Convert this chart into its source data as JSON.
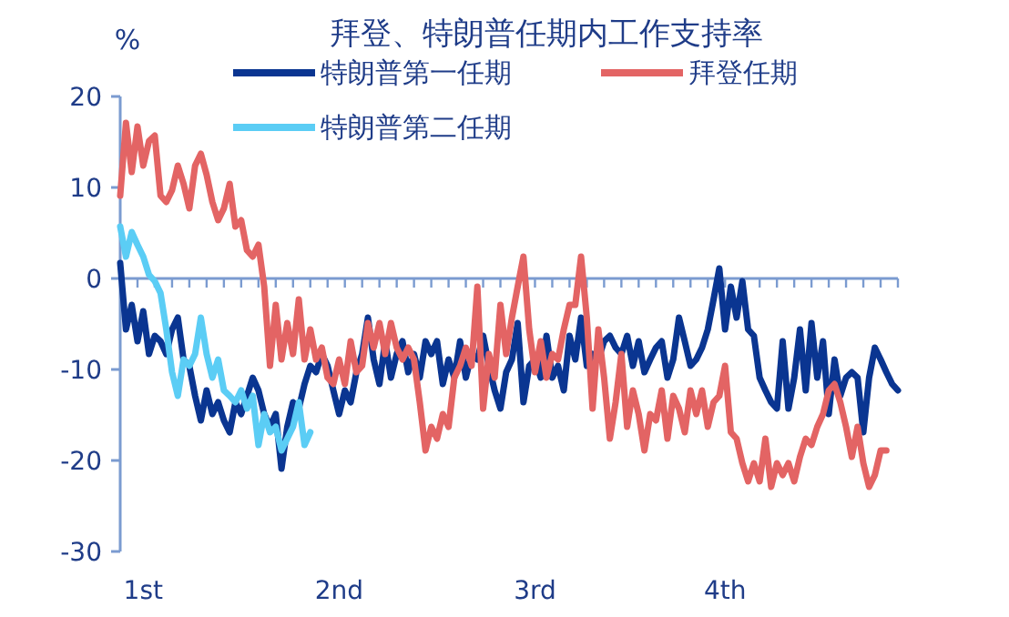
{
  "chart_data": {
    "type": "line",
    "title": "拜登、特朗普任期内工作支持率",
    "ylabel": "%",
    "ylim": [
      -30,
      20
    ],
    "yticks": [
      -30,
      -20,
      -10,
      0,
      10,
      20
    ],
    "categories": [
      null,
      null,
      null,
      null,
      "1st",
      null,
      null,
      null,
      null,
      null,
      null,
      null,
      null,
      null,
      null,
      null,
      null,
      null,
      null,
      null,
      null,
      null,
      null,
      null,
      null,
      null,
      null,
      null,
      null,
      null,
      null,
      null,
      null,
      null,
      null,
      null,
      null,
      null,
      "2nd",
      null,
      null,
      null,
      null,
      null,
      null,
      null,
      null,
      null,
      null,
      null,
      null,
      null,
      null,
      null,
      null,
      null,
      null,
      null,
      null,
      null,
      null,
      null,
      null,
      null,
      null,
      null,
      null,
      null,
      null,
      null,
      null,
      null,
      "3rd",
      null,
      null,
      null,
      null,
      null,
      null,
      null,
      null,
      null,
      null,
      null,
      null,
      null,
      null,
      null,
      null,
      null,
      null,
      null,
      null,
      null,
      null,
      null,
      null,
      null,
      null,
      null,
      null,
      null,
      null,
      null,
      null,
      "4th",
      null,
      null,
      null,
      null,
      null,
      null,
      null,
      null,
      null,
      null,
      null,
      null,
      null,
      null,
      null,
      null,
      null,
      null,
      null,
      null,
      null,
      null,
      null,
      null,
      null,
      null,
      null,
      null,
      null,
      null
    ],
    "ref_lines": [
      {
        "axis": "y",
        "value": 0,
        "color": "#7b9bd0",
        "line_style": "solid"
      }
    ],
    "legend": "top",
    "grid": false,
    "line_style": "solid",
    "series": [
      {
        "name": "特朗普第一任期",
        "color": "#0a3591",
        "values": [
          1.7,
          -5.6,
          -2.9,
          -6.9,
          -3.6,
          -8.3,
          -6.3,
          -6.9,
          -8.3,
          -5.6,
          -4.3,
          -8.9,
          -9.6,
          -12.9,
          -15.6,
          -12.3,
          -14.9,
          -13.6,
          -15.6,
          -16.9,
          -13.6,
          -14.9,
          -12.9,
          -10.9,
          -12.3,
          -14.9,
          -16.3,
          -14.9,
          -20.9,
          -16.3,
          -13.6,
          -14.3,
          -11.6,
          -9.6,
          -10.3,
          -8.3,
          -9.6,
          -12.3,
          -14.9,
          -12.3,
          -13.6,
          -10.3,
          -8.3,
          -4.3,
          -8.9,
          -11.6,
          -6.9,
          -10.9,
          -8.3,
          -6.9,
          -10.3,
          -8.3,
          -10.9,
          -6.9,
          -8.3,
          -6.9,
          -11.6,
          -8.9,
          -10.9,
          -6.9,
          -10.9,
          -8.3,
          -8.9,
          -6.3,
          -9.6,
          -12.3,
          -14.3,
          -10.3,
          -8.9,
          -4.9,
          -13.6,
          -9.6,
          -8.9,
          -10.9,
          -6.3,
          -10.9,
          -9.6,
          -12.3,
          -6.3,
          -8.9,
          -4.3,
          -9.6,
          -8.3,
          -8.9,
          -6.9,
          -6.3,
          -7.6,
          -8.3,
          -6.3,
          -9.6,
          -6.9,
          -10.3,
          -8.9,
          -7.6,
          -6.9,
          -10.9,
          -8.9,
          -4.3,
          -6.9,
          -9.6,
          -8.9,
          -7.6,
          -5.6,
          -2.3,
          1.1,
          -5.6,
          -0.9,
          -4.3,
          -0.3,
          -5.6,
          -6.3,
          -10.9,
          -12.3,
          -13.6,
          -14.3,
          -6.9,
          -14.3,
          -10.9,
          -5.6,
          -12.3,
          -4.9,
          -10.9,
          -6.9,
          -14.9,
          -8.9,
          -12.9,
          -10.9,
          -10.3,
          -10.9,
          -16.9,
          -10.9,
          -7.6,
          -8.9,
          -10.3,
          -11.6,
          -12.3
        ]
      },
      {
        "name": "拜登任期",
        "color": "#e36464",
        "values": [
          9.1,
          17.1,
          11.7,
          16.7,
          12.4,
          15.1,
          15.7,
          9.1,
          8.4,
          9.7,
          12.4,
          10.4,
          7.7,
          12.4,
          13.7,
          11.4,
          8.4,
          6.4,
          7.7,
          10.4,
          5.7,
          6.4,
          3.1,
          2.4,
          3.7,
          -0.9,
          -9.6,
          -2.9,
          -8.9,
          -4.9,
          -8.3,
          -2.3,
          -8.9,
          -5.6,
          -8.9,
          -7.6,
          -10.9,
          -11.6,
          -8.9,
          -11.6,
          -6.9,
          -10.3,
          -9.6,
          -4.9,
          -7.6,
          -4.9,
          -8.3,
          -4.9,
          -7.6,
          -8.9,
          -7.6,
          -8.9,
          -13.6,
          -18.9,
          -16.3,
          -17.6,
          -14.9,
          -16.3,
          -10.9,
          -9.6,
          -7.6,
          -9.6,
          -0.9,
          -14.3,
          -8.3,
          -10.9,
          -2.9,
          -8.3,
          -4.3,
          -0.9,
          2.4,
          -5.6,
          -10.3,
          -6.9,
          -10.9,
          -8.3,
          -8.9,
          -5.6,
          -2.9,
          -2.9,
          2.4,
          -4.3,
          -14.3,
          -5.6,
          -10.9,
          -17.6,
          -13.6,
          -8.3,
          -16.3,
          -12.3,
          -14.9,
          -18.9,
          -14.9,
          -15.6,
          -12.3,
          -17.6,
          -12.9,
          -14.3,
          -16.9,
          -12.3,
          -14.9,
          -12.3,
          -16.3,
          -13.6,
          -12.9,
          -9.6,
          -16.9,
          -17.6,
          -20.3,
          -22.3,
          -20.3,
          -22.3,
          -17.6,
          -22.9,
          -20.3,
          -21.6,
          -20.3,
          -22.3,
          -19.6,
          -17.6,
          -18.3,
          -16.3,
          -14.9,
          -12.3,
          -11.6,
          -13.6,
          -16.3,
          -19.6,
          -16.3,
          -20.3,
          -22.9,
          -21.6,
          -18.9,
          -18.9,
          null,
          null
        ]
      },
      {
        "name": "特朗普第二任期",
        "color": "#5bcdf5",
        "values": [
          5.7,
          2.4,
          5.1,
          3.7,
          2.4,
          0.4,
          -0.3,
          -1.6,
          -5.6,
          -10.3,
          -12.9,
          -8.9,
          -9.6,
          -8.3,
          -4.3,
          -8.3,
          -10.9,
          -8.9,
          -12.3,
          -12.9,
          -13.6,
          -12.3,
          -14.3,
          -12.9,
          -18.3,
          -14.9,
          -16.9,
          -16.3,
          -18.9,
          -17.6,
          -16.3,
          -13.6,
          -18.3,
          -16.9,
          null,
          null,
          null,
          null,
          null,
          null,
          null,
          null,
          null,
          null,
          null,
          null,
          null,
          null,
          null,
          null,
          null,
          null,
          null,
          null,
          null,
          null,
          null,
          null,
          null,
          null,
          null,
          null,
          null,
          null,
          null,
          null,
          null,
          null,
          null,
          null,
          null,
          null,
          null,
          null,
          null,
          null,
          null,
          null,
          null,
          null,
          null,
          null,
          null,
          null,
          null,
          null,
          null,
          null,
          null,
          null,
          null,
          null,
          null,
          null,
          null,
          null,
          null,
          null,
          null,
          null,
          null,
          null,
          null,
          null,
          null,
          null,
          null,
          null,
          null,
          null,
          null,
          null,
          null,
          null,
          null,
          null,
          null,
          null,
          null,
          null,
          null,
          null,
          null,
          null,
          null,
          null,
          null,
          null,
          null,
          null,
          null,
          null,
          null,
          null,
          null,
          null
        ]
      }
    ]
  }
}
